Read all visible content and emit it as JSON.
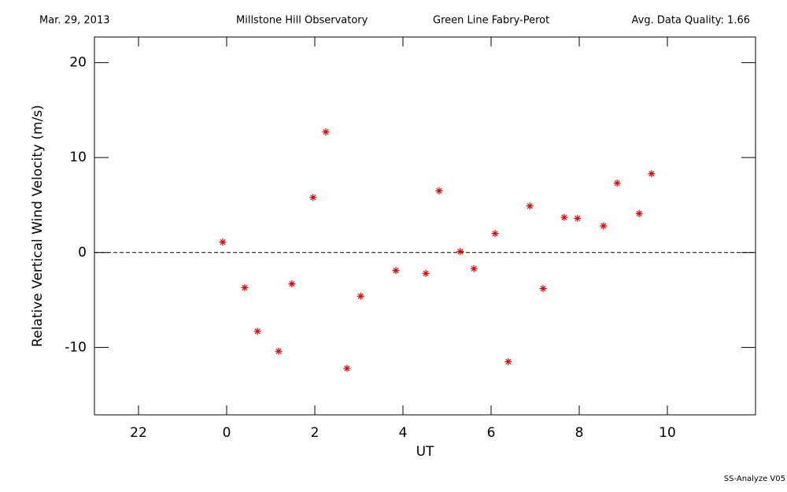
{
  "chart_data": {
    "type": "scatter",
    "header": [
      "Mar. 29, 2013",
      "Millstone Hill Observatory",
      "Green Line Fabry-Perot",
      "Avg. Data Quality: 1.66"
    ],
    "footer": "SS-Analyze V05",
    "xlabel": "UT",
    "ylabel": "Relative Vertical Wind Velocity (m/s)",
    "xlim": [
      -3,
      12
    ],
    "xticks": [
      {
        "value": -2,
        "label": "22"
      },
      0,
      2,
      4,
      6,
      8,
      10
    ],
    "ylim": [
      -17.1,
      22.7
    ],
    "yticks": [
      -10,
      0,
      10,
      20
    ],
    "reference_line": 0,
    "series": [
      {
        "color": "#e00000",
        "x": [
          -0.09,
          0.41,
          0.7,
          1.18,
          1.48,
          1.96,
          2.25,
          2.73,
          3.04,
          3.84,
          4.52,
          4.82,
          5.3,
          5.61,
          6.09,
          6.39,
          6.88,
          7.18,
          7.66,
          7.96,
          8.55,
          8.86,
          9.36,
          9.64
        ],
        "values": [
          1.1,
          -3.7,
          -8.3,
          -10.4,
          -3.3,
          5.8,
          12.7,
          -12.2,
          -4.6,
          -1.9,
          -2.2,
          6.5,
          0.1,
          -1.7,
          2.0,
          -11.5,
          4.9,
          -3.8,
          3.7,
          3.6,
          2.8,
          7.3,
          4.1,
          8.3
        ]
      }
    ]
  }
}
